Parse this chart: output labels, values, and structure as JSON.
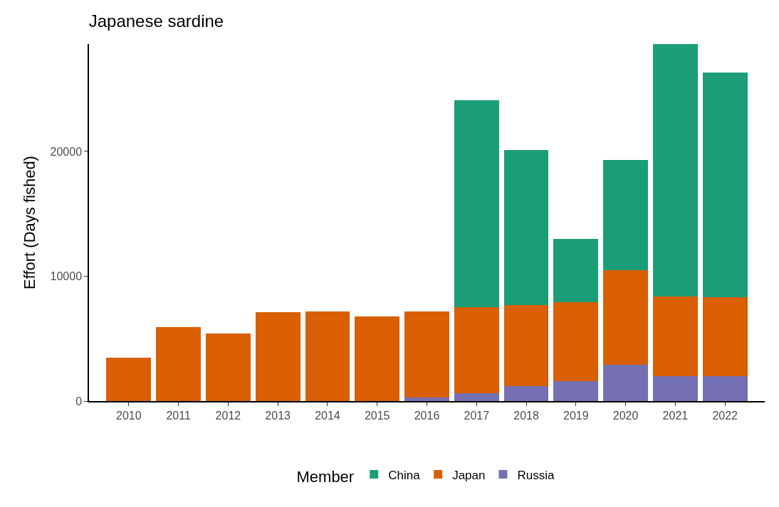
{
  "chart_data": {
    "type": "bar",
    "title": "Japanese sardine",
    "ylabel": "Effort (Days fished)",
    "legend_title": "Member",
    "stacked": true,
    "legend": "bottom",
    "categories": [
      "2010",
      "2011",
      "2012",
      "2013",
      "2014",
      "2015",
      "2016",
      "2017",
      "2018",
      "2019",
      "2020",
      "2021",
      "2022"
    ],
    "series": [
      {
        "name": "Russia",
        "color": "#7570b3",
        "values": [
          0,
          0,
          0,
          0,
          0,
          0,
          300,
          600,
          1200,
          1600,
          2900,
          2000,
          2000
        ]
      },
      {
        "name": "Japan",
        "color": "#d95f02",
        "values": [
          3500,
          5900,
          5400,
          7100,
          7200,
          6800,
          6900,
          6900,
          6500,
          6300,
          7600,
          6400,
          6300
        ]
      },
      {
        "name": "China",
        "color": "#1b9e77",
        "values": [
          0,
          0,
          0,
          0,
          0,
          0,
          0,
          16600,
          12400,
          5100,
          8800,
          20200,
          18000
        ]
      }
    ],
    "ylim": [
      0,
      28600
    ],
    "yticks": [
      0,
      10000,
      20000
    ]
  }
}
